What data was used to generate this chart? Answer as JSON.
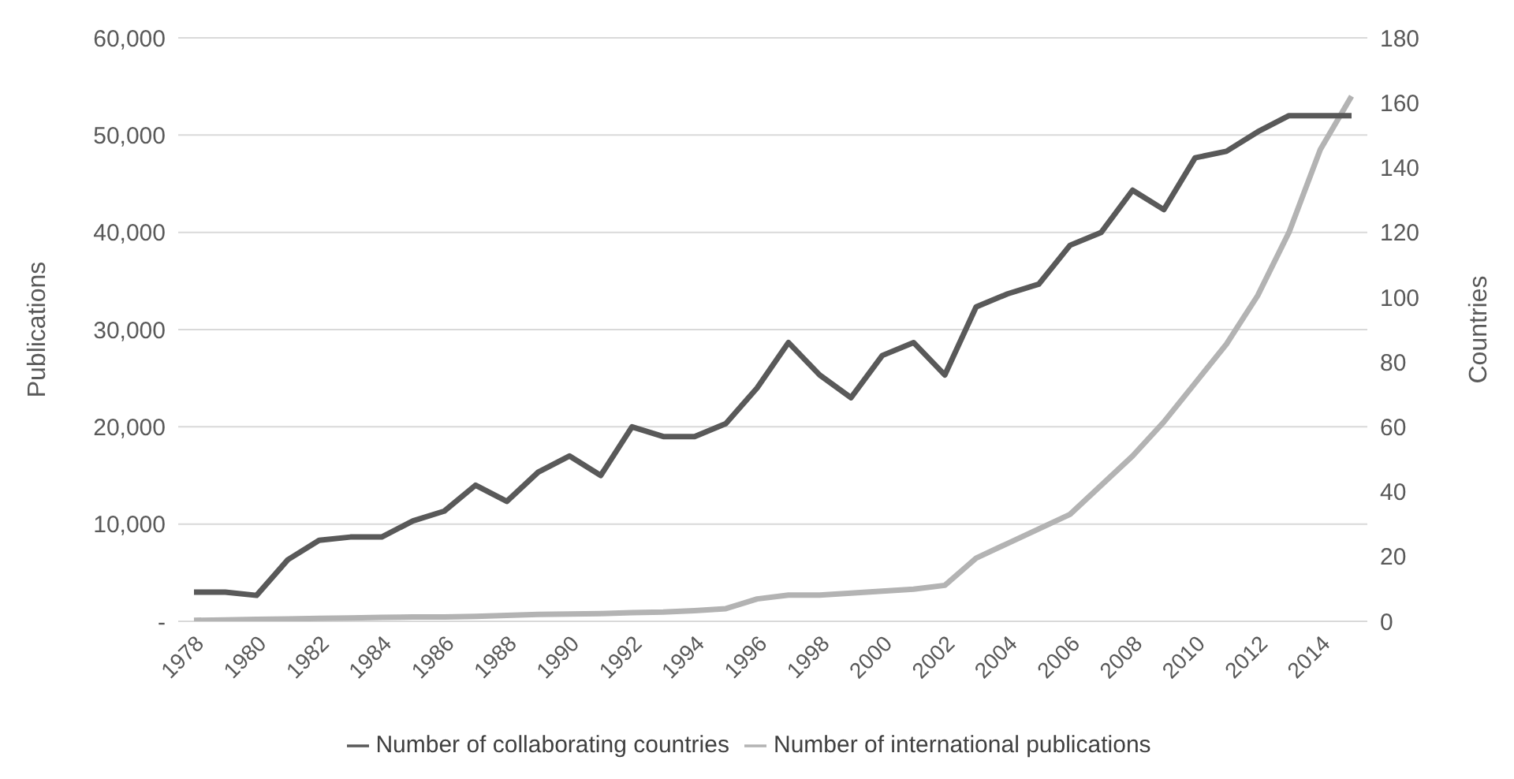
{
  "chart_data": {
    "type": "line",
    "ylabel": "Publications",
    "y2label": "Countries",
    "categories": [
      "1978",
      null,
      "1980",
      null,
      "1982",
      null,
      "1984",
      null,
      "1986",
      null,
      "1988",
      null,
      "1990",
      null,
      "1992",
      null,
      "1994",
      null,
      "1996",
      null,
      "1998",
      null,
      "2000",
      null,
      "2002",
      null,
      "2004",
      null,
      "2006",
      null,
      "2008",
      null,
      "2010",
      null,
      "2012",
      null,
      "2014",
      null
    ],
    "series": [
      {
        "name": "Number of international publications",
        "color": "#b3b3b3",
        "values": [
          100,
          150,
          200,
          250,
          300,
          350,
          400,
          450,
          450,
          500,
          600,
          700,
          750,
          800,
          900,
          950,
          1100,
          1300,
          2300,
          2700,
          2700,
          2900,
          3100,
          3300,
          3700,
          6500,
          8000,
          9500,
          11000,
          14000,
          17000,
          20500,
          24500,
          28500,
          33500,
          40000,
          48500,
          54000
        ]
      },
      {
        "name": "Number of collaborating countries",
        "color": "#595959",
        "axis": "y2",
        "values": [
          9,
          9,
          8,
          19,
          25,
          26,
          26,
          31,
          34,
          42,
          37,
          46,
          51,
          45,
          60,
          57,
          57,
          61,
          72,
          86,
          76,
          69,
          82,
          86,
          76,
          97,
          101,
          104,
          116,
          120,
          133,
          127,
          143,
          145,
          151,
          156,
          156,
          156
        ]
      }
    ],
    "ylim": [
      0,
      60000
    ],
    "yticks": [
      {
        "value": 0,
        "label": "-"
      },
      {
        "value": 10000,
        "label": "10,000"
      },
      {
        "value": 20000,
        "label": "20,000"
      },
      {
        "value": 30000,
        "label": "30,000"
      },
      {
        "value": 40000,
        "label": "40,000"
      },
      {
        "value": 50000,
        "label": "50,000"
      },
      {
        "value": 60000,
        "label": "60,000"
      }
    ],
    "y2lim": [
      0,
      180
    ],
    "y2ticks": [
      0,
      20,
      40,
      60,
      80,
      100,
      120,
      140,
      160,
      180
    ],
    "grid": "y",
    "legend": "bottom",
    "marker": "none",
    "line_style": "solid"
  }
}
